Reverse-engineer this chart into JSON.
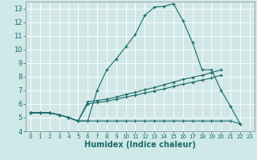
{
  "xlabel": "Humidex (Indice chaleur)",
  "bg_color": "#cfe8e8",
  "line_color": "#1a6b6b",
  "xlim": [
    -0.5,
    23.5
  ],
  "ylim": [
    4,
    13.5
  ],
  "yticks": [
    4,
    5,
    6,
    7,
    8,
    9,
    10,
    11,
    12,
    13
  ],
  "xticks": [
    0,
    1,
    2,
    3,
    4,
    5,
    6,
    7,
    8,
    9,
    10,
    11,
    12,
    13,
    14,
    15,
    16,
    17,
    18,
    19,
    20,
    21,
    22,
    23
  ],
  "series": [
    {
      "x": [
        0,
        1,
        2,
        3,
        4,
        5,
        6,
        7,
        8,
        9,
        10,
        11,
        12,
        13,
        14,
        15,
        16,
        17,
        18,
        19,
        20,
        21,
        22
      ],
      "y": [
        5.35,
        5.35,
        5.35,
        5.2,
        5.0,
        4.75,
        4.75,
        7.0,
        8.5,
        9.3,
        10.2,
        11.1,
        12.5,
        13.1,
        13.15,
        13.35,
        12.1,
        10.5,
        8.5,
        8.5,
        7.0,
        5.8,
        4.55
      ]
    },
    {
      "x": [
        0,
        1,
        2,
        3,
        4,
        5,
        6,
        7,
        8,
        9,
        10,
        11,
        12,
        13,
        14,
        15,
        16,
        17,
        18,
        19,
        20
      ],
      "y": [
        5.35,
        5.35,
        5.35,
        5.2,
        5.0,
        4.75,
        6.15,
        6.25,
        6.35,
        6.5,
        6.7,
        6.85,
        7.05,
        7.2,
        7.4,
        7.6,
        7.8,
        7.95,
        8.1,
        8.3,
        8.5
      ]
    },
    {
      "x": [
        0,
        1,
        2,
        3,
        4,
        5,
        6,
        7,
        8,
        9,
        10,
        11,
        12,
        13,
        14,
        15,
        16,
        17,
        18,
        19,
        20
      ],
      "y": [
        5.35,
        5.35,
        5.35,
        5.2,
        5.0,
        4.75,
        6.0,
        6.1,
        6.2,
        6.35,
        6.5,
        6.65,
        6.8,
        6.95,
        7.1,
        7.28,
        7.45,
        7.6,
        7.75,
        7.9,
        8.1
      ]
    },
    {
      "x": [
        0,
        1,
        2,
        3,
        4,
        5,
        6,
        7,
        8,
        9,
        10,
        11,
        12,
        13,
        14,
        15,
        16,
        17,
        18,
        19,
        20,
        21,
        22
      ],
      "y": [
        5.35,
        5.35,
        5.35,
        5.2,
        5.0,
        4.75,
        4.75,
        4.75,
        4.75,
        4.75,
        4.75,
        4.75,
        4.75,
        4.75,
        4.75,
        4.75,
        4.75,
        4.75,
        4.75,
        4.75,
        4.75,
        4.75,
        4.55
      ]
    }
  ],
  "grid_major_color": "#ffffff",
  "grid_minor_color": "#e8d8d8"
}
